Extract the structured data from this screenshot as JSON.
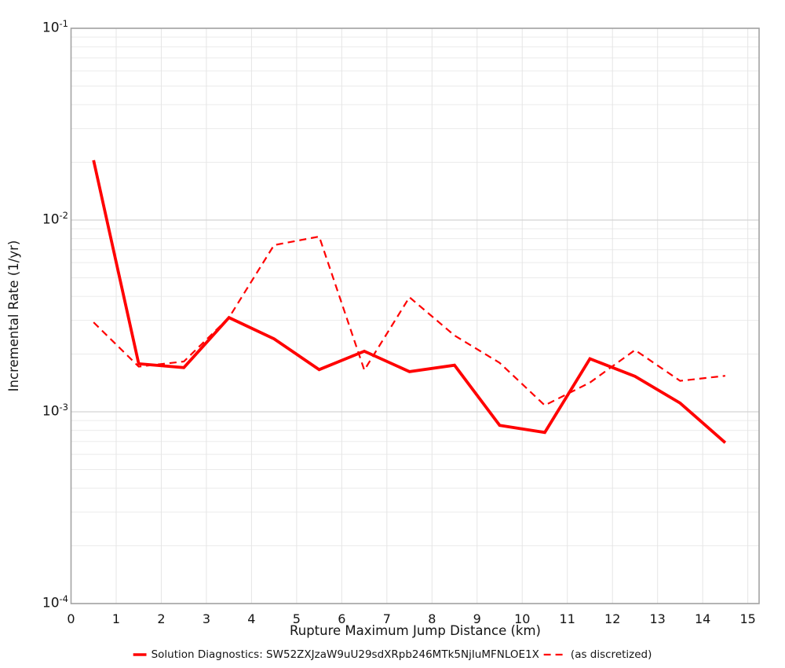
{
  "chart_data": {
    "type": "line",
    "title": "",
    "xlabel": "Rupture Maximum Jump Distance (km)",
    "ylabel": "Incremental Rate (1/yr)",
    "x_axis": {
      "lim": [
        0,
        15.25
      ],
      "ticks": [
        0,
        1,
        2,
        3,
        4,
        5,
        6,
        7,
        8,
        9,
        10,
        11,
        12,
        13,
        14,
        15
      ],
      "scale": "linear"
    },
    "y_axis": {
      "lim": [
        0.0001,
        0.1
      ],
      "tick_exponents": [
        -1,
        -2,
        -3,
        -4
      ],
      "tick_base": "10",
      "scale": "log",
      "minor_gridlines": true
    },
    "grid": "on",
    "legend_position": "bottom-center",
    "x": [
      0.5,
      1.5,
      2.5,
      3.5,
      4.5,
      5.5,
      6.5,
      7.5,
      8.5,
      9.5,
      10.5,
      11.5,
      12.5,
      13.5,
      14.5
    ],
    "series": [
      {
        "name": "Solution Diagnostics: SW52ZXJzaW9uU29sdXRpb246MTk5NjIuMFNLOE1X",
        "style": "solid",
        "color": "#ff0000",
        "line_width": 3.8,
        "values": [
          0.0205,
          0.00178,
          0.0017,
          0.0031,
          0.0024,
          0.00166,
          0.00207,
          0.00162,
          0.00175,
          0.00085,
          0.00078,
          0.00189,
          0.00153,
          0.00111,
          0.00069
        ]
      },
      {
        "name": "(as discretized)",
        "style": "dashed",
        "color": "#ff0000",
        "line_width": 2.2,
        "values": [
          0.00293,
          0.00172,
          0.00183,
          0.0031,
          0.0074,
          0.0082,
          0.00165,
          0.00396,
          0.0025,
          0.0018,
          0.00108,
          0.00142,
          0.0021,
          0.00145,
          0.00154
        ]
      }
    ],
    "colors": {
      "series_red": "#ff0000",
      "frame": "#a3a3a3",
      "grid_major": "#d4d4d4",
      "grid_minor": "#ebebeb",
      "grid_vertical": "#e5e5e5",
      "text": "#141414",
      "background": "#ffffff"
    }
  }
}
